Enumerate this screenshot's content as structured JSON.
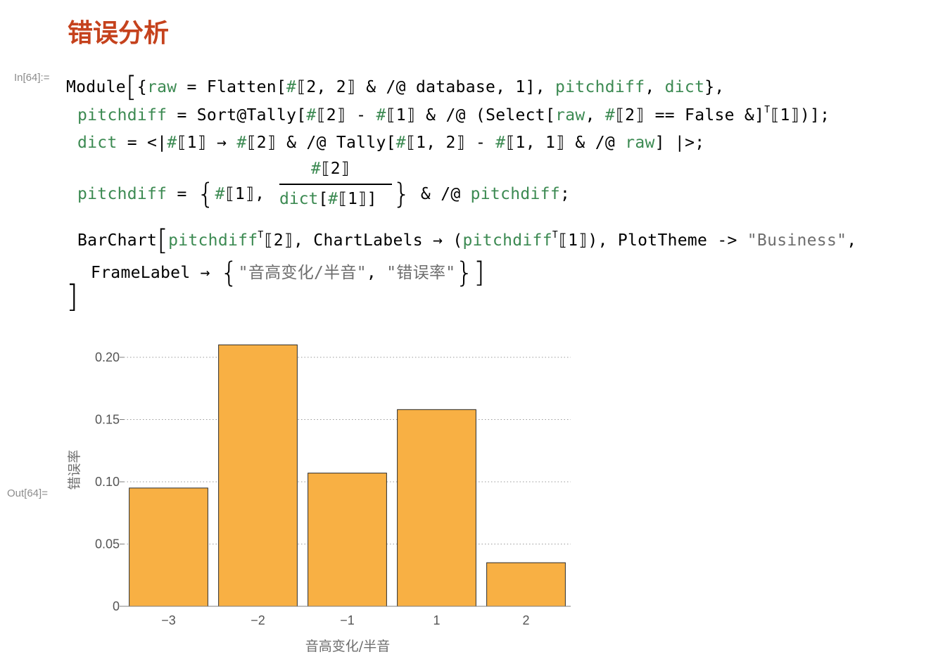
{
  "section_title": "错误分析",
  "in_label": "In[64]:=",
  "out_label": "Out[64]=",
  "code": {
    "l1_module": "Module",
    "l1_open": "{",
    "l1_raw": "raw",
    "l1_eq": " = Flatten[",
    "l1_hash": "#",
    "l1_part": "⟦2, 2⟧ & /@ database, 1], ",
    "l1_pitchdiff": "pitchdiff",
    "l1_comma": ", ",
    "l1_dict": "dict",
    "l1_close": "},",
    "l2_pitchdiff": "pitchdiff",
    "l2_a": " = Sort@Tally[",
    "l2_h1": "#",
    "l2_b": "⟦2⟧ - ",
    "l2_h2": "#",
    "l2_c": "⟦1⟧ & /@ (Select[",
    "l2_raw": "raw",
    "l2_d": ", ",
    "l2_h3": "#",
    "l2_e": "⟦2⟧ == False &]",
    "l2_sup": "T",
    "l2_f": "⟦1⟧)];",
    "l3_dict": "dict",
    "l3_a": " = <|",
    "l3_h1": "#",
    "l3_b": "⟦1⟧ → ",
    "l3_h2": "#",
    "l3_c": "⟦2⟧ & /@ Tally[",
    "l3_h3": "#",
    "l3_d": "⟦1, 2⟧ - ",
    "l3_h4": "#",
    "l3_e": "⟦1, 1⟧ & /@ ",
    "l3_raw": "raw",
    "l3_f": "] |>;",
    "l4_pitchdiff": "pitchdiff",
    "l4_a": " = ",
    "l4_brace_open": "{",
    "l4_h1": "#",
    "l4_b": "⟦1⟧, ",
    "l4_num_h": "#",
    "l4_num": "⟦2⟧",
    "l4_den_dict": "dict",
    "l4_den_a": "[",
    "l4_den_h": "#",
    "l4_den_b": "⟦1⟧]",
    "l4_brace_close": "}",
    "l4_c": " & /@ ",
    "l4_pitchdiff2": "pitchdiff",
    "l4_d": ";",
    "l5_barchart": "BarChart",
    "l5_pitchdiff": "pitchdiff",
    "l5_sup1": "T",
    "l5_a": "⟦2⟧, ChartLabels → (",
    "l5_pitchdiff2": "pitchdiff",
    "l5_sup2": "T",
    "l5_b": "⟦1⟧), PlotTheme -> ",
    "l5_str": "\"Business\"",
    "l5_c": ",",
    "l6_a": "FrameLabel → ",
    "l6_open": "{",
    "l6_str1": "\"音高变化/半音\"",
    "l6_comma": ", ",
    "l6_str2": "\"错误率\"",
    "l6_close": "}",
    "l6_end": "]",
    "l7_close": "]"
  },
  "chart_data": {
    "type": "bar",
    "categories": [
      "−3",
      "−2",
      "−1",
      "1",
      "2"
    ],
    "values": [
      0.095,
      0.21,
      0.107,
      0.158,
      0.035
    ],
    "xlabel": "音高变化/半音",
    "ylabel": "错误率",
    "ylim": [
      0,
      0.2
    ],
    "yticks": [
      0,
      0.05,
      0.1,
      0.15,
      0.2
    ],
    "ytick_labels": [
      "0",
      "0.05",
      "0.10",
      "0.15",
      "0.20"
    ],
    "grid": "horizontal-dotted",
    "bar_color": "#f8b044",
    "bar_edge": "#2b2b2b"
  }
}
